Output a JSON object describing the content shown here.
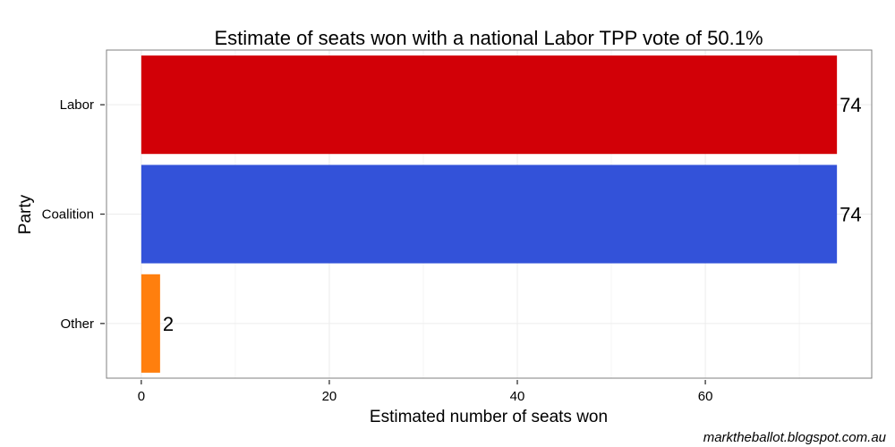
{
  "chart_data": {
    "type": "bar",
    "orientation": "horizontal",
    "title": "Estimate of seats won with a national Labor TPP vote of 50.1%",
    "xlabel": "Estimated number of seats won",
    "ylabel": "Party",
    "categories": [
      "Labor",
      "Coalition",
      "Other"
    ],
    "values": [
      74,
      74,
      2
    ],
    "data_labels": [
      "74",
      "74",
      "2"
    ],
    "colors": [
      "#d20007",
      "#3352d9",
      "#ff7f0e"
    ],
    "xlim": [
      -3.7,
      77.7
    ],
    "xticks": [
      0,
      20,
      40,
      60
    ],
    "xtick_labels": [
      "0",
      "20",
      "40",
      "60"
    ],
    "grid": true,
    "legend": "none"
  },
  "credit": "marktheballot.blogspot.com.au"
}
